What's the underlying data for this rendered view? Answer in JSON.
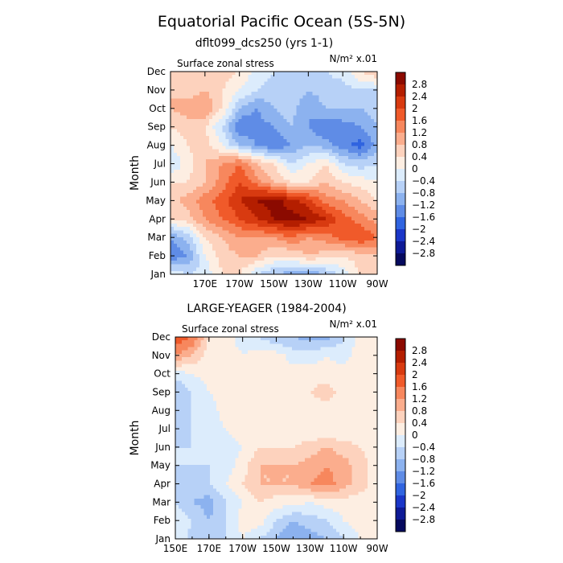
{
  "figure": {
    "title": "Equatorial Pacific Ocean (5S-5N)"
  },
  "colorbar": {
    "levels": [
      "2.8",
      "2.4",
      "2",
      "1.6",
      "1.2",
      "0.8",
      "0.4",
      "0",
      "-0.4",
      "-0.8",
      "-1.2",
      "-1.6",
      "-2",
      "-2.4",
      "-2.8"
    ],
    "colors": [
      "#8b0a00",
      "#b41e00",
      "#d83a10",
      "#f05a2a",
      "#f7875d",
      "#fbad8d",
      "#fdd2bd",
      "#fdeee2",
      "#dcecfc",
      "#b7d1f7",
      "#8cb2ef",
      "#5f8ce6",
      "#3064e0",
      "#1a36c8",
      "#0e1a96",
      "#060a5e"
    ]
  },
  "chart_data": [
    {
      "type": "heatmap",
      "title": "dflt099_dcs250 (yrs 1-1)",
      "variable_label": "Surface zonal stress",
      "units_label": "N/m² x.01",
      "ylabel": "Month",
      "y_ticks": [
        "Jan",
        "Feb",
        "Mar",
        "Apr",
        "May",
        "Jun",
        "Jul",
        "Aug",
        "Sep",
        "Oct",
        "Nov",
        "Dec"
      ],
      "x_ticks": [
        "170E",
        "170W",
        "150W",
        "130W",
        "110W",
        "90W"
      ],
      "x": [
        150,
        160,
        170,
        180,
        190,
        200,
        210,
        220,
        230,
        240,
        250,
        260,
        270
      ],
      "y": [
        1,
        2,
        3,
        4,
        5,
        6,
        7,
        8,
        9,
        10,
        11,
        12
      ],
      "z": [
        [
          0.0,
          -0.4,
          -0.3,
          0.4,
          0.4,
          -0.4,
          -0.8,
          -1.0,
          -1.2,
          -0.8,
          -0.2,
          0.4,
          0.8
        ],
        [
          -1.6,
          -1.2,
          0.0,
          0.6,
          0.8,
          0.8,
          0.4,
          0.4,
          0.8,
          0.6,
          0.4,
          0.6,
          0.8
        ],
        [
          -1.2,
          -0.6,
          0.4,
          0.8,
          1.2,
          1.2,
          1.2,
          1.6,
          1.2,
          1.4,
          1.8,
          2.0,
          1.6
        ],
        [
          0.4,
          0.6,
          1.2,
          1.6,
          2.0,
          2.4,
          2.8,
          3.0,
          2.8,
          2.4,
          1.8,
          1.4,
          1.0
        ],
        [
          0.6,
          1.0,
          1.4,
          1.8,
          2.4,
          2.8,
          3.0,
          2.6,
          2.2,
          1.4,
          1.2,
          0.8,
          0.4
        ],
        [
          0.4,
          0.4,
          0.8,
          1.4,
          2.0,
          1.4,
          0.8,
          0.4,
          0.4,
          0.8,
          0.4,
          0.2,
          0.0
        ],
        [
          -0.4,
          0.2,
          0.8,
          1.2,
          1.6,
          0.8,
          0.4,
          -0.4,
          0.0,
          0.4,
          -0.4,
          -0.6,
          -0.4
        ],
        [
          0.0,
          0.4,
          0.6,
          0.0,
          -0.8,
          -1.2,
          -1.6,
          -1.2,
          -0.8,
          -1.0,
          -1.4,
          -1.8,
          -1.0
        ],
        [
          0.4,
          0.6,
          0.4,
          -0.4,
          -1.6,
          -1.4,
          -1.2,
          -0.8,
          -1.2,
          -1.6,
          -1.4,
          -1.2,
          -0.8
        ],
        [
          0.8,
          1.0,
          1.2,
          0.4,
          -0.8,
          -1.2,
          -0.8,
          -0.6,
          -1.2,
          -0.8,
          -0.8,
          -0.8,
          -0.6
        ],
        [
          0.8,
          0.6,
          0.8,
          0.4,
          0.0,
          -0.4,
          -0.6,
          -0.4,
          -0.8,
          -0.6,
          -0.6,
          -0.4,
          -0.4
        ],
        [
          0.8,
          0.4,
          0.4,
          0.6,
          0.4,
          -0.2,
          -0.4,
          -0.4,
          -0.4,
          -0.4,
          -0.2,
          0.4,
          0.8
        ]
      ]
    },
    {
      "type": "heatmap",
      "title": "LARGE-YEAGER (1984-2004)",
      "variable_label": "Surface zonal stress",
      "units_label": "N/m² x.01",
      "ylabel": "Month",
      "y_ticks": [
        "Jan",
        "Feb",
        "Mar",
        "Apr",
        "May",
        "Jun",
        "Jul",
        "Aug",
        "Sep",
        "Oct",
        "Nov",
        "Dec"
      ],
      "x_ticks": [
        "150E",
        "170E",
        "170W",
        "150W",
        "130W",
        "110W",
        "90W"
      ],
      "x": [
        150,
        160,
        170,
        180,
        190,
        200,
        210,
        220,
        230,
        240,
        250,
        260,
        270
      ],
      "y": [
        1,
        2,
        3,
        4,
        5,
        6,
        7,
        8,
        9,
        10,
        11,
        12
      ],
      "z": [
        [
          0.0,
          -0.6,
          -0.8,
          -0.4,
          0.0,
          -0.4,
          -0.8,
          -1.2,
          -1.0,
          -0.8,
          -0.4,
          0.0,
          0.2
        ],
        [
          0.0,
          -0.4,
          -0.8,
          -0.4,
          0.2,
          0.2,
          -0.4,
          -0.8,
          -0.6,
          -0.4,
          0.0,
          0.2,
          0.2
        ],
        [
          -0.4,
          -0.8,
          -1.0,
          -0.4,
          0.0,
          0.4,
          0.2,
          0.2,
          0.0,
          0.2,
          0.2,
          0.2,
          0.2
        ],
        [
          -0.4,
          -0.6,
          -0.4,
          0.0,
          0.4,
          0.8,
          0.8,
          0.8,
          1.2,
          1.4,
          1.0,
          0.6,
          0.2
        ],
        [
          -0.4,
          -0.4,
          -0.4,
          -0.2,
          0.2,
          0.8,
          0.8,
          0.8,
          1.0,
          1.2,
          1.0,
          0.6,
          0.2
        ],
        [
          -0.4,
          -0.4,
          -0.4,
          -0.2,
          0.0,
          0.4,
          0.4,
          0.4,
          0.6,
          0.8,
          0.6,
          0.4,
          0.2
        ],
        [
          -0.6,
          -0.4,
          -0.2,
          0.0,
          0.2,
          0.2,
          0.2,
          0.2,
          0.0,
          0.0,
          0.0,
          0.2,
          0.2
        ],
        [
          -0.4,
          -0.4,
          -0.2,
          0.2,
          0.2,
          0.2,
          0.2,
          0.2,
          0.2,
          0.2,
          0.0,
          0.2,
          0.2
        ],
        [
          -0.8,
          -0.4,
          0.0,
          0.2,
          0.2,
          0.2,
          0.2,
          0.2,
          0.4,
          0.6,
          0.2,
          0.2,
          0.2
        ],
        [
          -0.2,
          0.0,
          0.2,
          0.4,
          0.2,
          0.2,
          0.2,
          0.2,
          0.2,
          0.2,
          0.2,
          0.2,
          0.2
        ],
        [
          1.2,
          0.8,
          0.2,
          0.2,
          0.0,
          0.2,
          0.2,
          -0.2,
          -0.2,
          0.0,
          -0.2,
          0.2,
          0.2
        ],
        [
          2.0,
          1.6,
          0.4,
          0.2,
          -0.2,
          -0.4,
          -0.8,
          -0.8,
          -1.0,
          -1.0,
          -0.4,
          0.2,
          0.2
        ]
      ]
    }
  ]
}
